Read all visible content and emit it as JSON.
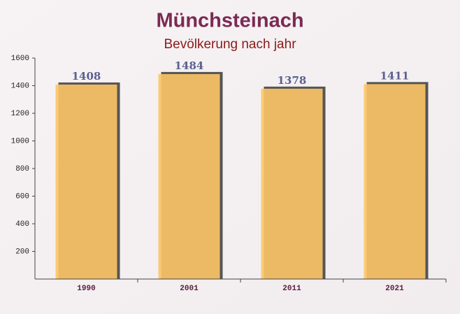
{
  "chart_data": {
    "type": "bar",
    "title": "Münchsteinach",
    "subtitle": "Bevölkerung nach jahr",
    "categories": [
      "1990",
      "2001",
      "2011",
      "2021"
    ],
    "values": [
      1408,
      1484,
      1378,
      1411
    ],
    "color": "#fdc566",
    "ylim": [
      0,
      1600
    ],
    "yticks": [
      200,
      400,
      600,
      800,
      1000,
      1200,
      1400,
      1600
    ]
  }
}
